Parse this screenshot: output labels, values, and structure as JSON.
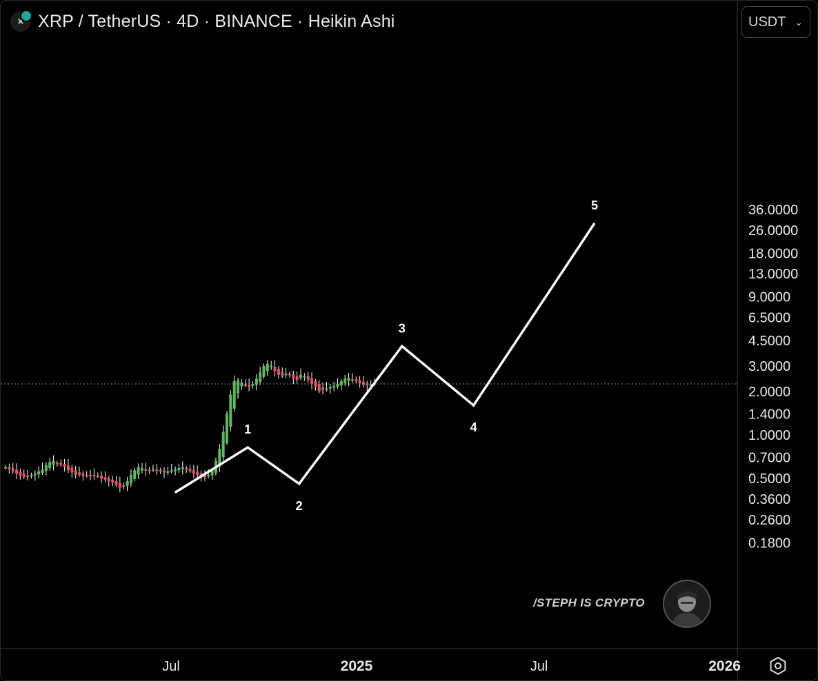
{
  "header": {
    "title": "XRP / TetherUS · 4D · BINANCE · Heikin Ashi",
    "symbol_icon": "close-icon"
  },
  "currency_selector": {
    "value": "USDT",
    "icon": "chevron-down-icon"
  },
  "settings": {
    "icon": "settings-hexagon-icon"
  },
  "watermark": {
    "text": "/STEPH IS CRYPTO",
    "avatar": "person-avatar-icon"
  },
  "colors": {
    "background": "#000000",
    "candle_up": "#5fb85f",
    "candle_down": "#e05562",
    "wick": "#ffffff",
    "wave_line": "#ffffff",
    "last_price_line": "#4caf7a"
  },
  "chart_data": {
    "type": "candlestick-heikin-ashi",
    "scale": "log",
    "price_axis": {
      "ticks": [
        "36.0000",
        "26.0000",
        "18.0000",
        "13.0000",
        "9.0000",
        "6.5000",
        "4.5000",
        "3.0000",
        "2.0000",
        "1.4000",
        "1.0000",
        "0.7000",
        "0.5000",
        "0.3600",
        "0.2600",
        "0.1800"
      ]
    },
    "time_axis": {
      "ticks": [
        "Jul",
        "2025",
        "Jul",
        "2026"
      ],
      "tick_dates": [
        "2024-07-01",
        "2025-01-01",
        "2025-07-01",
        "2026-01-01"
      ],
      "bold": [
        false,
        true,
        false,
        true
      ]
    },
    "last_price": 2.25,
    "wave_labels": [
      "1",
      "2",
      "3",
      "4",
      "5"
    ],
    "elliott_wave": [
      {
        "date": "2024-07-05",
        "price": 0.4
      },
      {
        "date": "2024-09-15",
        "price": 0.82,
        "label": "1"
      },
      {
        "date": "2024-11-05",
        "price": 0.46,
        "label": "2"
      },
      {
        "date": "2025-02-15",
        "price": 4.1,
        "label": "3"
      },
      {
        "date": "2025-04-27",
        "price": 1.6,
        "label": "4"
      },
      {
        "date": "2025-08-25",
        "price": 29.0,
        "label": "5"
      }
    ],
    "candles_close": [
      0.6,
      0.58,
      0.56,
      0.54,
      0.52,
      0.51,
      0.52,
      0.53,
      0.54,
      0.56,
      0.58,
      0.62,
      0.65,
      0.66,
      0.64,
      0.62,
      0.6,
      0.57,
      0.55,
      0.53,
      0.53,
      0.52,
      0.53,
      0.53,
      0.52,
      0.52,
      0.5,
      0.49,
      0.48,
      0.47,
      0.45,
      0.43,
      0.44,
      0.48,
      0.53,
      0.57,
      0.6,
      0.59,
      0.57,
      0.57,
      0.58,
      0.57,
      0.56,
      0.55,
      0.56,
      0.57,
      0.58,
      0.59,
      0.6,
      0.58,
      0.56,
      0.54,
      0.53,
      0.52,
      0.51,
      0.53,
      0.57,
      0.66,
      0.8,
      1.05,
      1.4,
      1.9,
      2.35,
      2.4,
      2.3,
      2.2,
      2.15,
      2.25,
      2.45,
      2.7,
      3.0,
      3.1,
      3.0,
      2.75,
      2.6,
      2.55,
      2.65,
      2.6,
      2.45,
      2.4,
      2.6,
      2.55,
      2.4,
      2.25,
      2.15,
      2.0,
      2.05,
      2.1,
      2.15,
      2.18,
      2.25,
      2.35,
      2.45,
      2.48,
      2.42,
      2.35,
      2.28,
      2.22,
      2.2,
      2.25,
      2.28
    ]
  }
}
